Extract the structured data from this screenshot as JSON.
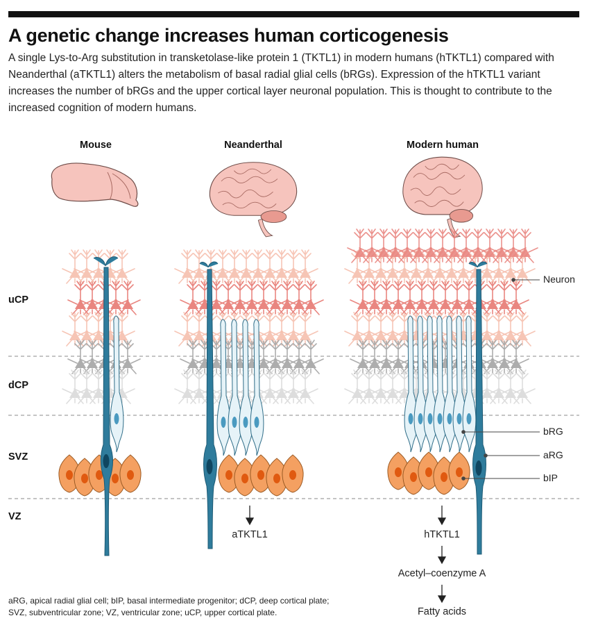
{
  "title": "A genetic change increases human corticogenesis",
  "description": "A single Lys-to-Arg substitution in transketolase-like protein 1 (TKTL1) in modern humans (hTKTL1) compared with Neanderthal (aTKTL1) alters the metabolism of basal radial glial cells (bRGs). Expression of the hTKTL1 variant increases the number of bRGs and the upper cortical layer neuronal population. This is thought to contribute to the increased cognition of modern humans.",
  "columns": {
    "mouse": "Mouse",
    "neanderthal": "Neanderthal",
    "human": "Modern human"
  },
  "zones": {
    "ucp": "uCP",
    "dcp": "dCP",
    "svz": "SVZ",
    "vz": "VZ"
  },
  "labels": {
    "neuron": "Neuron",
    "brg": "bRG",
    "arg": "aRG",
    "bip": "bIP"
  },
  "flow": {
    "atktl1": "aTKTL1",
    "htktl1": "hTKTL1",
    "acetyl": "Acetyl–coenzyme A",
    "fatty": "Fatty acids"
  },
  "footnote": "aRG, apical radial glial cell; bIP, basal intermediate progenitor; dCP, deep cortical plate; SVZ, subventricular zone; VZ, ventricular zone; uCP, upper cortical plate.",
  "colors": {
    "upper_neuron": "#e8807a",
    "upper_neuron_light": "#f6bfae",
    "deep_neuron": "#a9a9a9",
    "deep_neuron_light": "#dcdcdc",
    "arg": "#2f7c9c",
    "brg": "#d9edf5",
    "bip": "#f4a061",
    "brain": "#f6c4bd"
  }
}
